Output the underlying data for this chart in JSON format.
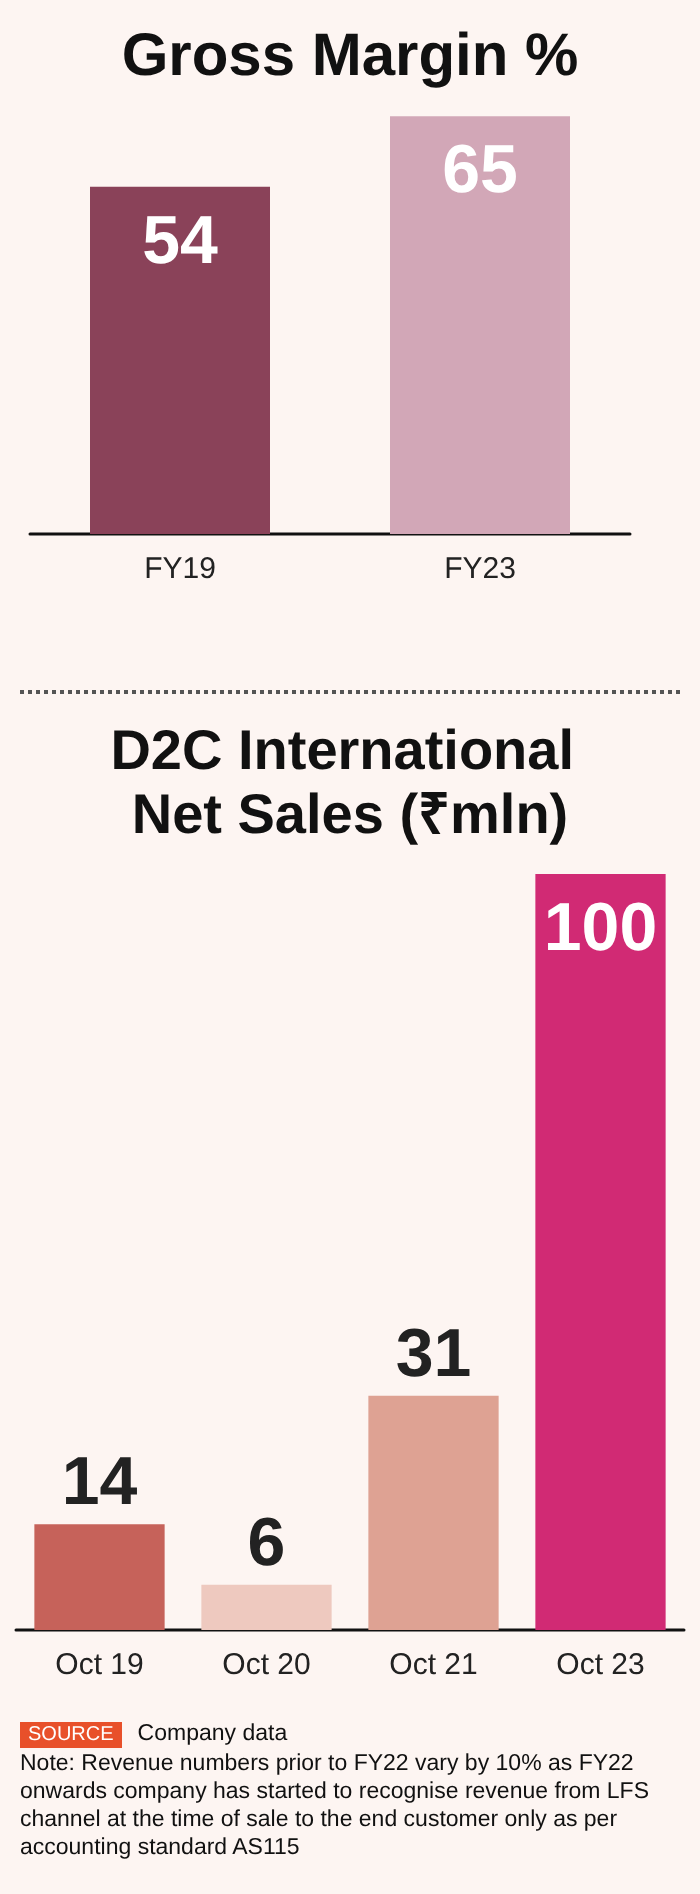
{
  "chart_data": [
    {
      "type": "bar",
      "title": "Gross Margin %",
      "categories": [
        "FY19",
        "FY23"
      ],
      "values": [
        54,
        65
      ],
      "colors": [
        "#8a4259",
        "#d2a7b7"
      ],
      "data_labels": true,
      "tick_labels": "x"
    },
    {
      "type": "bar",
      "title": "D2C International Net Sales (₹mln)",
      "categories": [
        "Oct 19",
        "Oct 20",
        "Oct 21",
        "Oct 23"
      ],
      "values": [
        14,
        6,
        31,
        100
      ],
      "colors": [
        "#c6625a",
        "#eec9bf",
        "#dea293",
        "#d12a74"
      ],
      "data_labels": true,
      "tick_labels": "x",
      "annotations": [
        "SOURCE",
        "Company data",
        "Note: Revenue numbers prior to FY22 vary by 10% as FY22 onwards company has started to recognise revenue from LFS channel at the time of sale to the end customer only as per accounting standard AS115"
      ]
    }
  ]
}
